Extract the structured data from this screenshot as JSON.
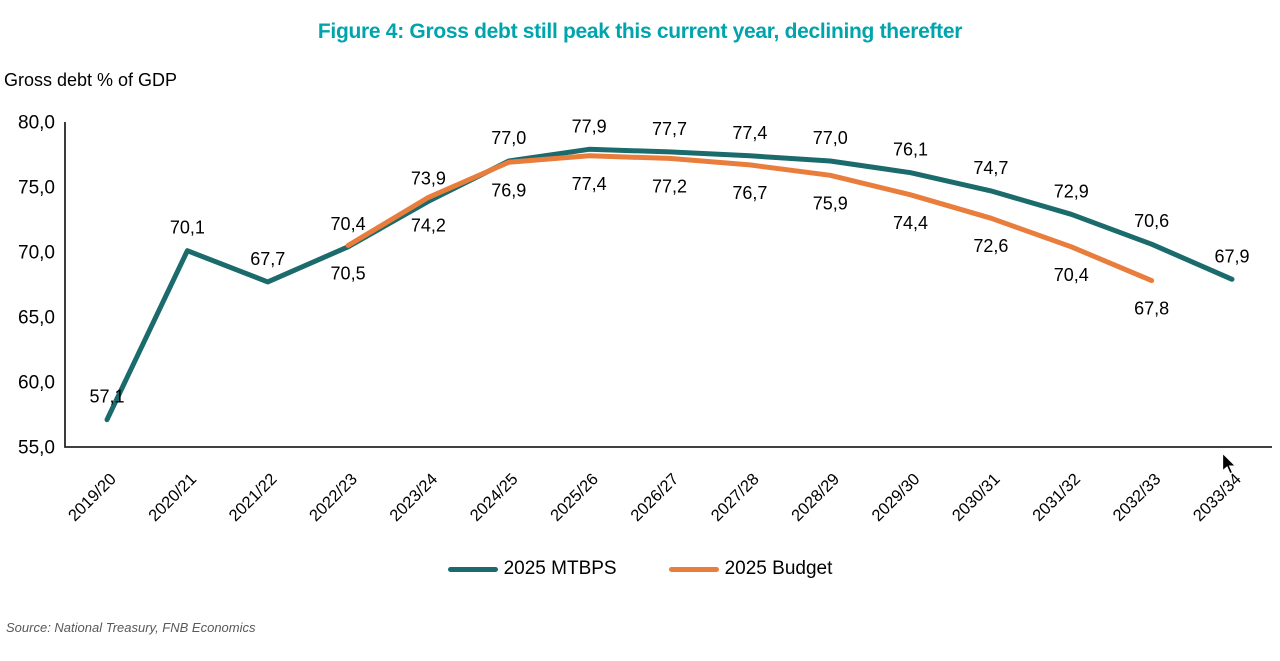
{
  "title": "Figure 4: Gross debt still peak this current year, declining therefter",
  "y_axis_label": "Gross debt % of GDP",
  "source": "Source: National Treasury, FNB Economics",
  "colors": {
    "title": "#00A4AD",
    "mtbps": "#1B6B6D",
    "budget": "#E97D3C",
    "axis": "#262626",
    "label_text": "#000000",
    "source_text": "#595959"
  },
  "legend": [
    {
      "label": "2025 MTBPS",
      "color_key": "mtbps"
    },
    {
      "label": "2025 Budget",
      "color_key": "budget"
    }
  ],
  "chart_data": {
    "type": "line",
    "categories": [
      "2019/20",
      "2020/21",
      "2021/22",
      "2022/23",
      "2023/24",
      "2024/25",
      "2025/26",
      "2026/27",
      "2027/28",
      "2028/29",
      "2029/30",
      "2030/31",
      "2031/32",
      "2032/33",
      "2033/34"
    ],
    "series": [
      {
        "name": "2025 MTBPS",
        "color_key": "mtbps",
        "values": [
          57.1,
          70.1,
          67.7,
          70.4,
          73.9,
          77.0,
          77.9,
          77.7,
          77.4,
          77.0,
          76.1,
          74.7,
          72.9,
          70.6,
          67.9
        ],
        "labels": [
          "57,1",
          "70,1",
          "67,7",
          "70,4",
          "73,9",
          "77,0",
          "77,9",
          "77,7",
          "77,4",
          "77,0",
          "76,1",
          "74,7",
          "72,9",
          "70,6",
          "67,9"
        ],
        "label_position": "above"
      },
      {
        "name": "2025 Budget",
        "color_key": "budget",
        "values": [
          null,
          null,
          null,
          70.5,
          74.2,
          76.9,
          77.4,
          77.2,
          76.7,
          75.9,
          74.4,
          72.6,
          70.4,
          67.8,
          null
        ],
        "labels": [
          null,
          null,
          null,
          "70,5",
          "74,2",
          "76,9",
          "77,4",
          "77,2",
          "76,7",
          "75,9",
          "74,4",
          "72,6",
          "70,4",
          "67,8",
          null
        ],
        "label_position": "below"
      }
    ],
    "ylim": [
      55.0,
      80.0
    ],
    "y_ticks": [
      80.0,
      75.0,
      70.0,
      65.0,
      60.0,
      55.0
    ],
    "y_tick_labels": [
      "80,0",
      "75,0",
      "70,0",
      "65,0",
      "60,0",
      "55,0"
    ],
    "grid": false,
    "legend_position": "bottom",
    "decimal_separator": ","
  }
}
